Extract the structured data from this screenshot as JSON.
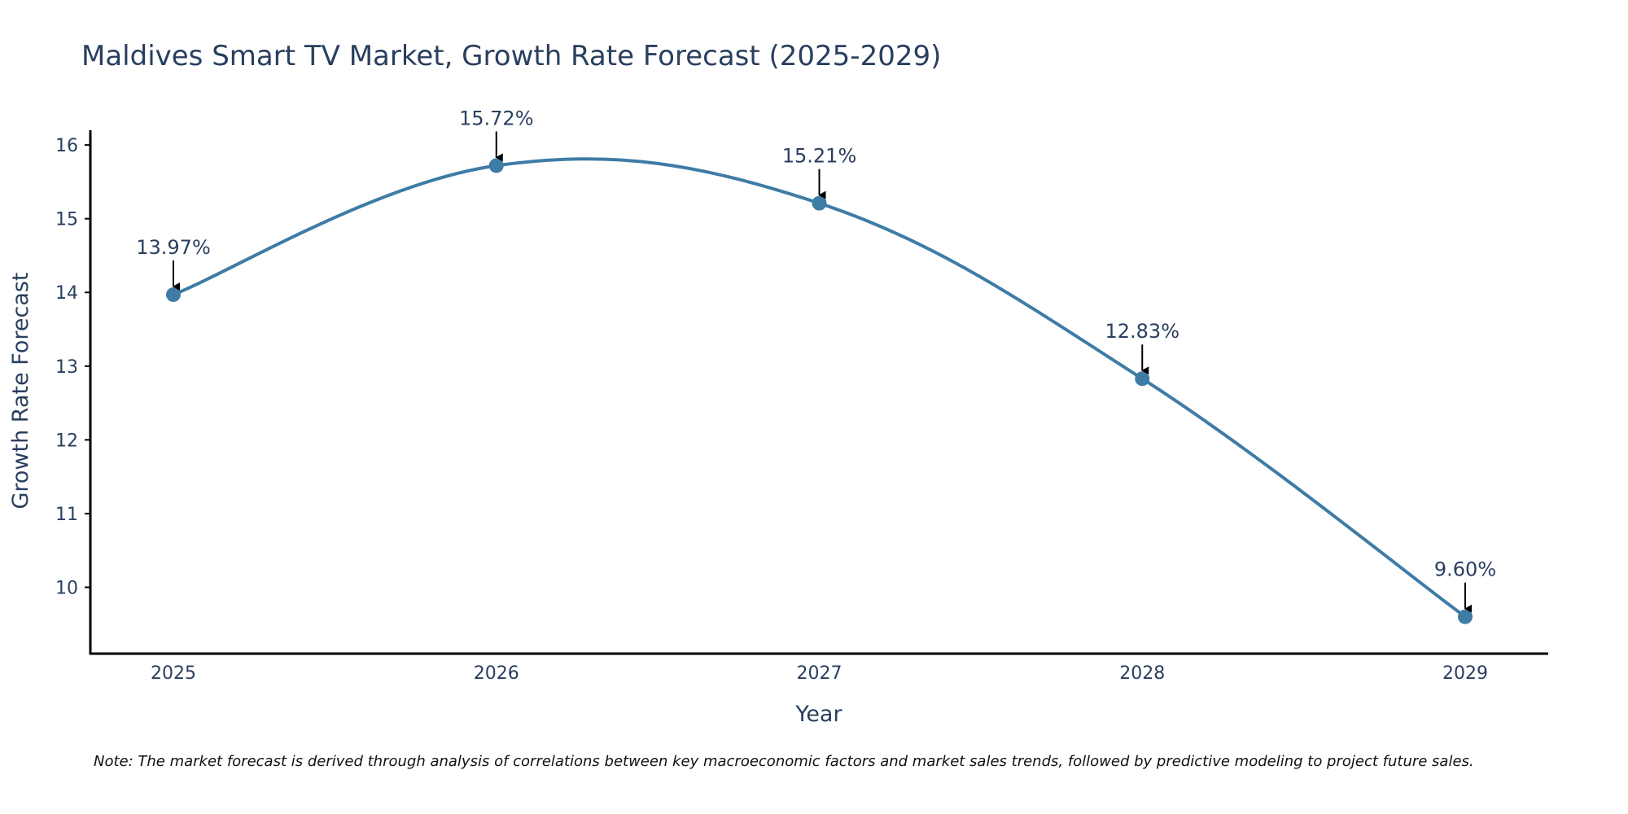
{
  "chart_data": {
    "type": "line",
    "title": "Maldives Smart TV Market, Growth Rate Forecast (2025-2029)",
    "xlabel": "Year",
    "ylabel": "Growth Rate Forecast",
    "x": [
      "2025",
      "2026",
      "2027",
      "2028",
      "2029"
    ],
    "series": [
      {
        "name": "Growth Rate Forecast",
        "values": [
          13.97,
          15.72,
          15.21,
          12.83,
          9.6
        ],
        "labels": [
          "13.97%",
          "15.72%",
          "15.21%",
          "12.83%",
          "9.60%"
        ],
        "color": "#3e7ca6"
      }
    ],
    "ylim": [
      9.1,
      16.2
    ],
    "yticks": [
      "10",
      "11",
      "12",
      "13",
      "14",
      "15",
      "16"
    ],
    "line_shape": "spline",
    "grid": false
  },
  "note": "Note: The market forecast is derived through analysis of correlations between key macroeconomic factors and market sales trends, followed by predictive modeling to project future sales."
}
